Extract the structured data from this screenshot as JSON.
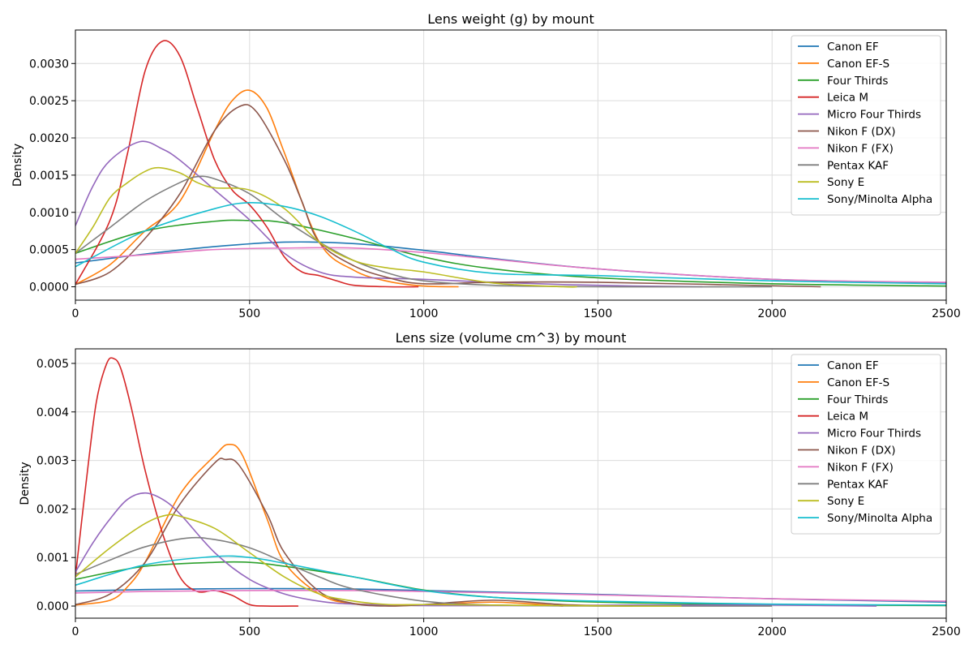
{
  "colors": {
    "Canon EF": "#1f77b4",
    "Canon EF-S": "#ff7f0e",
    "Four Thirds": "#2ca02c",
    "Leica M": "#d62728",
    "Micro Four Thirds": "#9467bd",
    "Nikon F (DX)": "#8c564b",
    "Nikon F (FX)": "#e377c2",
    "Pentax KAF": "#7f7f7f",
    "Sony E": "#bcbd22",
    "Sony/Minolta Alpha": "#17becf"
  },
  "chart_data": [
    {
      "type": "line",
      "title": "Lens weight (g) by mount",
      "xlabel": "",
      "ylabel": "Density",
      "xlim": [
        0,
        2500
      ],
      "ylim": [
        -0.00018,
        0.00345
      ],
      "xticks": [
        0,
        500,
        1000,
        1500,
        2000,
        2500
      ],
      "xtick_labels": [
        "0",
        "500",
        "1000",
        "1500",
        "2000",
        "2500"
      ],
      "yticks": [
        0,
        0.0005,
        0.001,
        0.0015,
        0.002,
        0.0025,
        0.003
      ],
      "ytick_labels": [
        "0.0000",
        "0.0005",
        "0.0010",
        "0.0015",
        "0.0020",
        "0.0025",
        "0.0030"
      ],
      "grid": true,
      "legend_position": "top-right",
      "series": [
        {
          "name": "Canon EF",
          "x": [
            0,
            200,
            400,
            600,
            800,
            1000,
            1200,
            1500,
            2000,
            2500
          ],
          "y": [
            0.00032,
            0.00044,
            0.00054,
            0.0006,
            0.00058,
            0.00049,
            0.00038,
            0.00024,
            0.0001,
            5e-05
          ]
        },
        {
          "name": "Canon EF-S",
          "x": [
            0,
            100,
            200,
            300,
            400,
            450,
            500,
            550,
            600,
            700,
            800,
            900,
            1000,
            1100
          ],
          "y": [
            3e-05,
            0.0003,
            0.00075,
            0.00115,
            0.0021,
            0.0025,
            0.00264,
            0.0024,
            0.0018,
            0.0006,
            0.00022,
            7e-05,
            1e-05,
            0
          ]
        },
        {
          "name": "Four Thirds",
          "x": [
            0,
            200,
            400,
            500,
            600,
            800,
            1000,
            1200,
            1500,
            2000,
            2500
          ],
          "y": [
            0.00045,
            0.00075,
            0.00088,
            0.00089,
            0.00086,
            0.00065,
            0.0004,
            0.00024,
            0.00012,
            4e-05,
            1e-05
          ]
        },
        {
          "name": "Leica M",
          "x": [
            0,
            100,
            150,
            200,
            250,
            300,
            350,
            400,
            450,
            500,
            550,
            600,
            650,
            700,
            750,
            800,
            900,
            985
          ],
          "y": [
            3e-05,
            0.0009,
            0.0018,
            0.0029,
            0.0033,
            0.0031,
            0.0024,
            0.0017,
            0.0013,
            0.0011,
            0.0008,
            0.0004,
            0.0002,
            0.00015,
            8e-05,
            2e-05,
            0,
            0
          ]
        },
        {
          "name": "Micro Four Thirds",
          "x": [
            0,
            50,
            100,
            185,
            250,
            300,
            400,
            500,
            600,
            700,
            800,
            1000,
            1200,
            1400,
            1600,
            1800
          ],
          "y": [
            0.00082,
            0.00135,
            0.0017,
            0.00195,
            0.00185,
            0.0017,
            0.0013,
            0.0009,
            0.00045,
            0.0002,
            0.00013,
            0.0001,
            6e-05,
            3e-05,
            1e-05,
            0
          ]
        },
        {
          "name": "Nikon F (DX)",
          "x": [
            0,
            100,
            200,
            300,
            400,
            470,
            520,
            600,
            650,
            700,
            800,
            900,
            1000,
            1200,
            1500,
            2140
          ],
          "y": [
            3e-05,
            0.0002,
            0.00065,
            0.00125,
            0.0021,
            0.00242,
            0.00235,
            0.0017,
            0.00115,
            0.0006,
            0.00028,
            0.00012,
            4e-05,
            6e-05,
            6e-05,
            0
          ]
        },
        {
          "name": "Nikon F (FX)",
          "x": [
            0,
            200,
            400,
            600,
            800,
            1000,
            1200,
            1500,
            2000,
            2500
          ],
          "y": [
            0.00037,
            0.00043,
            0.0005,
            0.00052,
            0.00052,
            0.00046,
            0.00037,
            0.00024,
            0.0001,
            6e-05
          ]
        },
        {
          "name": "Pentax KAF",
          "x": [
            0,
            100,
            200,
            300,
            350,
            400,
            500,
            600,
            700,
            800,
            900,
            1000,
            1200,
            1500,
            2000
          ],
          "y": [
            0.00045,
            0.0008,
            0.00115,
            0.0014,
            0.00148,
            0.00145,
            0.00125,
            0.0009,
            0.0006,
            0.00035,
            0.00018,
            8e-05,
            2e-05,
            0,
            0
          ]
        },
        {
          "name": "Sony E",
          "x": [
            0,
            50,
            100,
            150,
            200,
            240,
            300,
            350,
            400,
            500,
            600,
            700,
            800,
            900,
            1000,
            1200,
            1400,
            1440
          ],
          "y": [
            0.00045,
            0.0008,
            0.0012,
            0.0014,
            0.00155,
            0.0016,
            0.00153,
            0.0014,
            0.00133,
            0.0013,
            0.00105,
            0.0006,
            0.00035,
            0.00025,
            0.0002,
            5e-05,
            0,
            0
          ]
        },
        {
          "name": "Sony/Minolta Alpha",
          "x": [
            0,
            200,
            400,
            500,
            600,
            700,
            800,
            900,
            1000,
            1200,
            1500,
            2000,
            2500
          ],
          "y": [
            0.00027,
            0.00075,
            0.00105,
            0.00113,
            0.00108,
            0.00095,
            0.00075,
            0.00052,
            0.00033,
            0.00018,
            0.00015,
            8e-05,
            4e-05
          ]
        }
      ]
    },
    {
      "type": "line",
      "title": "Lens size (volume cm^3) by mount",
      "xlabel": "",
      "ylabel": "Density",
      "xlim": [
        0,
        2500
      ],
      "ylim": [
        -0.00025,
        0.0053
      ],
      "xticks": [
        0,
        500,
        1000,
        1500,
        2000,
        2500
      ],
      "xtick_labels": [
        "0",
        "500",
        "1000",
        "1500",
        "2000",
        "2500"
      ],
      "yticks": [
        0,
        0.001,
        0.002,
        0.003,
        0.004,
        0.005
      ],
      "ytick_labels": [
        "0.000",
        "0.001",
        "0.002",
        "0.003",
        "0.004",
        "0.005"
      ],
      "grid": true,
      "legend_position": "top-right",
      "series": [
        {
          "name": "Canon EF",
          "x": [
            0,
            200,
            500,
            800,
            1000,
            1500,
            2000,
            2500
          ],
          "y": [
            0.00031,
            0.00034,
            0.00036,
            0.00035,
            0.00032,
            0.00024,
            0.00015,
            8e-05
          ]
        },
        {
          "name": "Canon EF-S",
          "x": [
            0,
            100,
            150,
            200,
            300,
            400,
            440,
            480,
            550,
            600,
            700,
            800,
            1000,
            1200,
            1400
          ],
          "y": [
            2e-05,
            0.00012,
            0.0004,
            0.0009,
            0.0023,
            0.0031,
            0.00333,
            0.0031,
            0.0018,
            0.0009,
            0.00025,
            5e-05,
            3e-05,
            8e-05,
            0
          ]
        },
        {
          "name": "Four Thirds",
          "x": [
            0,
            200,
            400,
            500,
            600,
            800,
            1000,
            1200,
            1500,
            2000,
            2500
          ],
          "y": [
            0.00055,
            0.00082,
            0.0009,
            0.0009,
            0.00082,
            0.0006,
            0.00033,
            0.00018,
            8e-05,
            3e-05,
            1e-05
          ]
        },
        {
          "name": "Leica M",
          "x": [
            0,
            30,
            60,
            90,
            110,
            130,
            160,
            200,
            250,
            300,
            350,
            400,
            450,
            500,
            550,
            640
          ],
          "y": [
            0.0006,
            0.0025,
            0.0042,
            0.005,
            0.0051,
            0.0049,
            0.0041,
            0.0028,
            0.0015,
            0.0006,
            0.0003,
            0.00032,
            0.00022,
            3e-05,
            0,
            0
          ]
        },
        {
          "name": "Micro Four Thirds",
          "x": [
            0,
            50,
            100,
            150,
            200,
            250,
            300,
            400,
            500,
            600,
            700,
            800,
            1000,
            1200,
            1400,
            1600,
            1800,
            2000,
            2300
          ],
          "y": [
            0.0007,
            0.0013,
            0.0018,
            0.0022,
            0.00233,
            0.0022,
            0.0019,
            0.0011,
            0.00055,
            0.00025,
            0.0001,
            4e-05,
            1e-05,
            1e-05,
            1e-05,
            2e-05,
            2e-05,
            2e-05,
            0
          ]
        },
        {
          "name": "Nikon F (DX)",
          "x": [
            0,
            100,
            200,
            300,
            400,
            430,
            470,
            550,
            600,
            700,
            800,
            900,
            1000,
            1200,
            1400,
            1600
          ],
          "y": [
            3e-05,
            0.00025,
            0.0009,
            0.0021,
            0.00295,
            0.00302,
            0.0029,
            0.0019,
            0.0011,
            0.0003,
            5e-05,
            0,
            3e-05,
            0.00012,
            3e-05,
            0
          ]
        },
        {
          "name": "Nikon F (FX)",
          "x": [
            0,
            200,
            500,
            800,
            1000,
            1500,
            2000,
            2500
          ],
          "y": [
            0.00027,
            0.0003,
            0.00032,
            0.00032,
            0.0003,
            0.00023,
            0.00015,
            0.0001
          ]
        },
        {
          "name": "Pentax KAF",
          "x": [
            0,
            100,
            200,
            320,
            400,
            500,
            600,
            700,
            800,
            1000,
            1200,
            1500,
            2000
          ],
          "y": [
            0.00065,
            0.00095,
            0.00122,
            0.0014,
            0.00137,
            0.0012,
            0.0009,
            0.0006,
            0.00035,
            0.0001,
            2e-05,
            0,
            0
          ]
        },
        {
          "name": "Sony E",
          "x": [
            0,
            100,
            200,
            260,
            300,
            400,
            500,
            600,
            700,
            800,
            900,
            1000,
            1200,
            1400,
            1600,
            1740
          ],
          "y": [
            0.0006,
            0.0012,
            0.0017,
            0.00187,
            0.00185,
            0.0016,
            0.0011,
            0.0006,
            0.00025,
            0.0001,
            3e-05,
            3e-05,
            2e-05,
            1e-05,
            0,
            0
          ]
        },
        {
          "name": "Sony/Minolta Alpha",
          "x": [
            0,
            200,
            400,
            500,
            600,
            800,
            1000,
            1200,
            1500,
            2000,
            2500
          ],
          "y": [
            0.00043,
            0.00085,
            0.00102,
            0.001,
            0.00088,
            0.0006,
            0.00032,
            0.00018,
            0.0001,
            4e-05,
            2e-05
          ]
        }
      ]
    }
  ]
}
